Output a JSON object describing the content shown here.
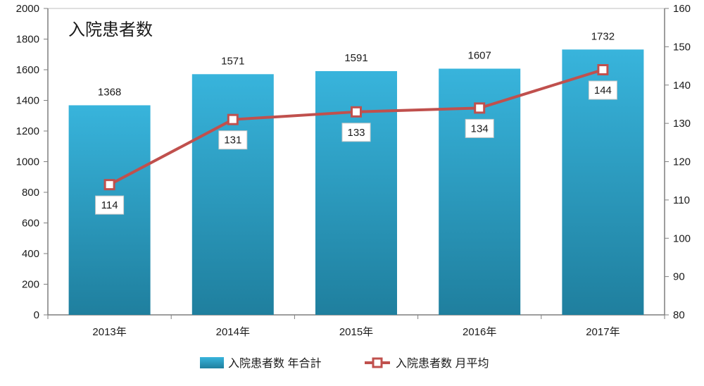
{
  "chart_data": {
    "type": "bar",
    "title": "入院患者数",
    "categories": [
      "2013年",
      "2014年",
      "2015年",
      "2016年",
      "2017年"
    ],
    "series": [
      {
        "name": "入院患者数 年合計",
        "type": "bar",
        "axis": "left",
        "values": [
          1368,
          1571,
          1591,
          1607,
          1732
        ],
        "color": "#2ea3c7"
      },
      {
        "name": "入院患者数 月平均",
        "type": "line",
        "axis": "right",
        "values": [
          114,
          131,
          133,
          134,
          144
        ],
        "color": "#c0504d",
        "marker": "square-hollow"
      }
    ],
    "y_left": {
      "range": [
        0,
        2000
      ],
      "ticks": [
        "0",
        "200",
        "400",
        "600",
        "800",
        "1000",
        "1200",
        "1400",
        "1600",
        "1800",
        "2000"
      ]
    },
    "y_right": {
      "range": [
        80,
        160
      ],
      "ticks": [
        "80",
        "90",
        "100",
        "110",
        "120",
        "130",
        "140",
        "150",
        "160"
      ]
    },
    "grid": false,
    "legend": "bottom-center"
  }
}
